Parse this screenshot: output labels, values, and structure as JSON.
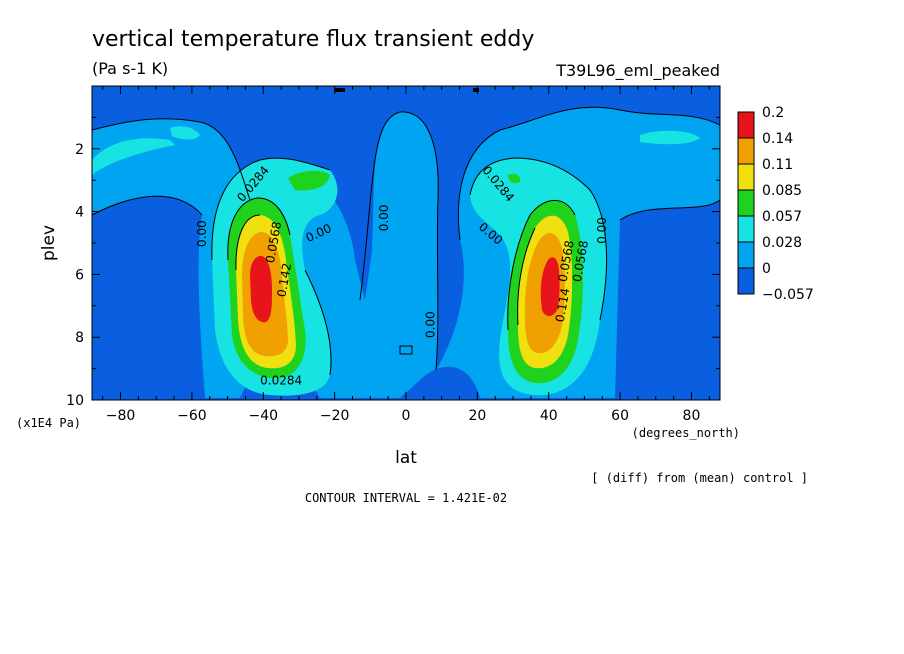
{
  "title": "vertical temperature flux transient eddy",
  "units": "(Pa s-1 K)",
  "experiment": "T39L96_eml_peaked",
  "note": "[ (diff) from (mean) control ]",
  "contour_interval": "CONTOUR INTERVAL = 1.421E-02",
  "xunit": "(degrees_north)",
  "yunit": "(x1E4 Pa)",
  "chart_data": {
    "type": "heatmap",
    "xlabel": "lat",
    "ylabel": "plev",
    "xlim": [
      -88,
      88
    ],
    "ylim": [
      10,
      0
    ],
    "xticks": [
      -80,
      -60,
      -40,
      -20,
      0,
      20,
      40,
      60,
      80
    ],
    "xtick_labels": [
      "-80",
      "-60",
      "-40",
      "-20",
      "0",
      "20",
      "40",
      "60",
      "80"
    ],
    "yticks": [
      2,
      4,
      6,
      8,
      10
    ],
    "ytick_labels": [
      "2",
      "4",
      "6",
      "8",
      "10"
    ],
    "colorbar": {
      "levels": [
        "0.2",
        "0.14",
        "0.11",
        "0.085",
        "0.057",
        "0.028",
        "0",
        "-0.057"
      ],
      "colors": [
        "#e8141c",
        "#f0a000",
        "#f0e010",
        "#1ed21e",
        "#17e3e3",
        "#00a4f0",
        "#0a5ee0"
      ]
    },
    "contour_labels": [
      {
        "text": "0.0284",
        "lat": -42,
        "plev": 3.2,
        "angle": -50
      },
      {
        "text": "0.00",
        "lat": -56,
        "plev": 4.7,
        "angle": -90
      },
      {
        "text": "0.00",
        "lat": -24,
        "plev": 4.8,
        "angle": -25
      },
      {
        "text": "0.00",
        "lat": -5,
        "plev": 4.2,
        "angle": -90
      },
      {
        "text": "0.0568",
        "lat": -36,
        "plev": 5.0,
        "angle": -80
      },
      {
        "text": "0.142",
        "lat": -33,
        "plev": 6.2,
        "angle": -80
      },
      {
        "text": "0.0284",
        "lat": -35,
        "plev": 9.5,
        "angle": 0
      },
      {
        "text": "0.0284",
        "lat": 25,
        "plev": 3.2,
        "angle": 50
      },
      {
        "text": "0.00",
        "lat": 23,
        "plev": 4.8,
        "angle": 40
      },
      {
        "text": "0.00",
        "lat": 8,
        "plev": 7.6,
        "angle": -90
      },
      {
        "text": "0.00",
        "lat": 56,
        "plev": 4.6,
        "angle": -90
      },
      {
        "text": "0.0568",
        "lat": 46,
        "plev": 5.6,
        "angle": -80
      },
      {
        "text": "0.0568",
        "lat": 50,
        "plev": 5.6,
        "angle": -80
      },
      {
        "text": "0.114",
        "lat": 45,
        "plev": 7.0,
        "angle": -80
      }
    ]
  }
}
